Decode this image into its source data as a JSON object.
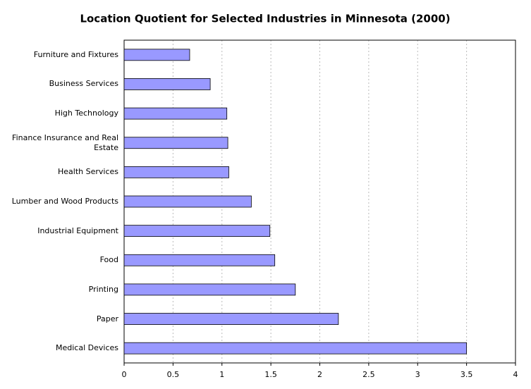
{
  "chart_data": {
    "type": "hbar",
    "title": "Location Quotient for Selected Industries in Minnesota (2000)",
    "categories": [
      "Furniture and Fixtures",
      "Business Services",
      "High Technology",
      "Finance Insurance and Real Estate",
      "Health Services",
      "Lumber and Wood Products",
      "Industrial Equipment",
      "Food",
      "Printing",
      "Paper",
      "Medical Devices"
    ],
    "values": [
      0.67,
      0.88,
      1.05,
      1.06,
      1.07,
      1.3,
      1.49,
      1.54,
      1.75,
      2.19,
      3.5
    ],
    "color": "#9999ff",
    "xlim": [
      0,
      4
    ],
    "xticks": [
      0,
      0.5,
      1,
      1.5,
      2,
      2.5,
      3,
      3.5,
      4
    ],
    "grid": true
  }
}
